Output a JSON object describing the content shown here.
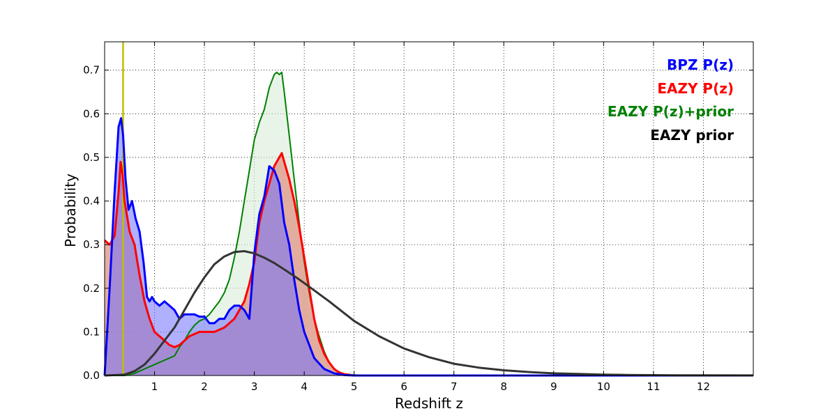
{
  "chart_data": {
    "type": "area",
    "xlabel": "Redshift z",
    "ylabel": "Probability",
    "xlim": [
      0,
      13
    ],
    "ylim": [
      0,
      0.765
    ],
    "xticks": [
      1,
      2,
      3,
      4,
      5,
      6,
      7,
      8,
      9,
      10,
      11,
      12
    ],
    "yticks": [
      0.0,
      0.1,
      0.2,
      0.3,
      0.4,
      0.5,
      0.6,
      0.7
    ],
    "grid": true,
    "legend_position": "top-right",
    "vertical_line": {
      "x": 0.37,
      "color": "#bfbf00"
    },
    "series": [
      {
        "name": "BPZ P(z)",
        "color": "#0000ff",
        "fill": "#7070ff",
        "x": [
          0,
          0.1,
          0.2,
          0.28,
          0.33,
          0.37,
          0.42,
          0.48,
          0.55,
          0.62,
          0.7,
          0.78,
          0.85,
          0.9,
          0.95,
          1.0,
          1.1,
          1.2,
          1.3,
          1.4,
          1.5,
          1.6,
          1.7,
          1.8,
          1.9,
          2.0,
          2.1,
          2.2,
          2.3,
          2.4,
          2.5,
          2.6,
          2.7,
          2.8,
          2.9,
          3.0,
          3.1,
          3.2,
          3.3,
          3.4,
          3.5,
          3.6,
          3.7,
          3.8,
          3.9,
          4.0,
          4.2,
          4.4,
          4.6,
          4.8,
          5.0,
          5.5,
          13
        ],
        "y": [
          0.0,
          0.2,
          0.42,
          0.57,
          0.59,
          0.55,
          0.45,
          0.38,
          0.4,
          0.36,
          0.33,
          0.26,
          0.18,
          0.17,
          0.18,
          0.17,
          0.16,
          0.17,
          0.16,
          0.15,
          0.13,
          0.14,
          0.14,
          0.14,
          0.135,
          0.135,
          0.12,
          0.12,
          0.13,
          0.13,
          0.15,
          0.16,
          0.16,
          0.15,
          0.13,
          0.28,
          0.37,
          0.41,
          0.48,
          0.47,
          0.44,
          0.35,
          0.3,
          0.22,
          0.15,
          0.1,
          0.04,
          0.015,
          0.005,
          0.001,
          0.0,
          0.0,
          0.0
        ]
      },
      {
        "name": "EAZY P(z)",
        "color": "#ff0000",
        "fill": "#e0a090",
        "x": [
          0,
          0.1,
          0.2,
          0.28,
          0.32,
          0.36,
          0.4,
          0.5,
          0.6,
          0.7,
          0.8,
          0.9,
          1.0,
          1.1,
          1.2,
          1.3,
          1.4,
          1.5,
          1.6,
          1.7,
          1.8,
          1.9,
          2.0,
          2.2,
          2.4,
          2.6,
          2.7,
          2.8,
          2.9,
          3.0,
          3.1,
          3.2,
          3.3,
          3.4,
          3.5,
          3.55,
          3.6,
          3.7,
          3.8,
          3.9,
          4.0,
          4.1,
          4.2,
          4.3,
          4.4,
          4.5,
          4.6,
          4.7,
          4.8,
          5.0,
          5.5,
          13
        ],
        "y": [
          0.31,
          0.3,
          0.32,
          0.42,
          0.49,
          0.46,
          0.4,
          0.33,
          0.3,
          0.23,
          0.17,
          0.13,
          0.1,
          0.09,
          0.08,
          0.07,
          0.065,
          0.07,
          0.08,
          0.09,
          0.095,
          0.1,
          0.1,
          0.1,
          0.11,
          0.13,
          0.15,
          0.17,
          0.21,
          0.26,
          0.35,
          0.4,
          0.44,
          0.48,
          0.5,
          0.51,
          0.49,
          0.45,
          0.4,
          0.34,
          0.27,
          0.2,
          0.13,
          0.08,
          0.05,
          0.03,
          0.015,
          0.007,
          0.003,
          0.0,
          0.0,
          0.0
        ]
      },
      {
        "name": "EAZY P(z)+prior",
        "color": "#008000",
        "fill": "#d8ecd8",
        "x": [
          0,
          0.2,
          0.4,
          0.6,
          0.8,
          1.0,
          1.2,
          1.4,
          1.5,
          1.6,
          1.7,
          1.8,
          1.9,
          2.0,
          2.1,
          2.2,
          2.3,
          2.4,
          2.5,
          2.6,
          2.7,
          2.8,
          2.9,
          3.0,
          3.1,
          3.2,
          3.3,
          3.4,
          3.45,
          3.5,
          3.55,
          3.6,
          3.7,
          3.8,
          3.9,
          4.0,
          4.1,
          4.2,
          4.3,
          4.4,
          4.5,
          4.6,
          4.7,
          4.8,
          5.0,
          5.5,
          13
        ],
        "y": [
          0.0,
          0.0,
          0.0,
          0.005,
          0.015,
          0.025,
          0.035,
          0.045,
          0.065,
          0.08,
          0.1,
          0.115,
          0.125,
          0.13,
          0.14,
          0.155,
          0.17,
          0.19,
          0.22,
          0.27,
          0.33,
          0.4,
          0.47,
          0.54,
          0.58,
          0.61,
          0.66,
          0.69,
          0.695,
          0.69,
          0.695,
          0.65,
          0.55,
          0.45,
          0.35,
          0.26,
          0.19,
          0.13,
          0.09,
          0.055,
          0.03,
          0.015,
          0.008,
          0.004,
          0.001,
          0.0,
          0.0
        ]
      },
      {
        "name": "EAZY prior",
        "color": "#333333",
        "fill": "",
        "x": [
          0,
          0.4,
          0.6,
          0.8,
          1.0,
          1.2,
          1.4,
          1.6,
          1.8,
          2.0,
          2.2,
          2.4,
          2.6,
          2.8,
          3.0,
          3.2,
          3.4,
          3.6,
          3.8,
          4.0,
          4.5,
          5.0,
          5.5,
          6.0,
          6.5,
          7.0,
          7.5,
          8.0,
          8.5,
          9.0,
          9.5,
          10.0,
          10.5,
          11.0,
          11.5,
          12.0,
          13.0
        ],
        "y": [
          0.0,
          0.002,
          0.01,
          0.025,
          0.05,
          0.08,
          0.11,
          0.15,
          0.19,
          0.225,
          0.255,
          0.273,
          0.283,
          0.285,
          0.28,
          0.27,
          0.258,
          0.243,
          0.228,
          0.212,
          0.17,
          0.125,
          0.09,
          0.062,
          0.042,
          0.027,
          0.018,
          0.012,
          0.008,
          0.005,
          0.0035,
          0.002,
          0.0013,
          0.0008,
          0.0005,
          0.0003,
          0.0001
        ]
      }
    ]
  }
}
